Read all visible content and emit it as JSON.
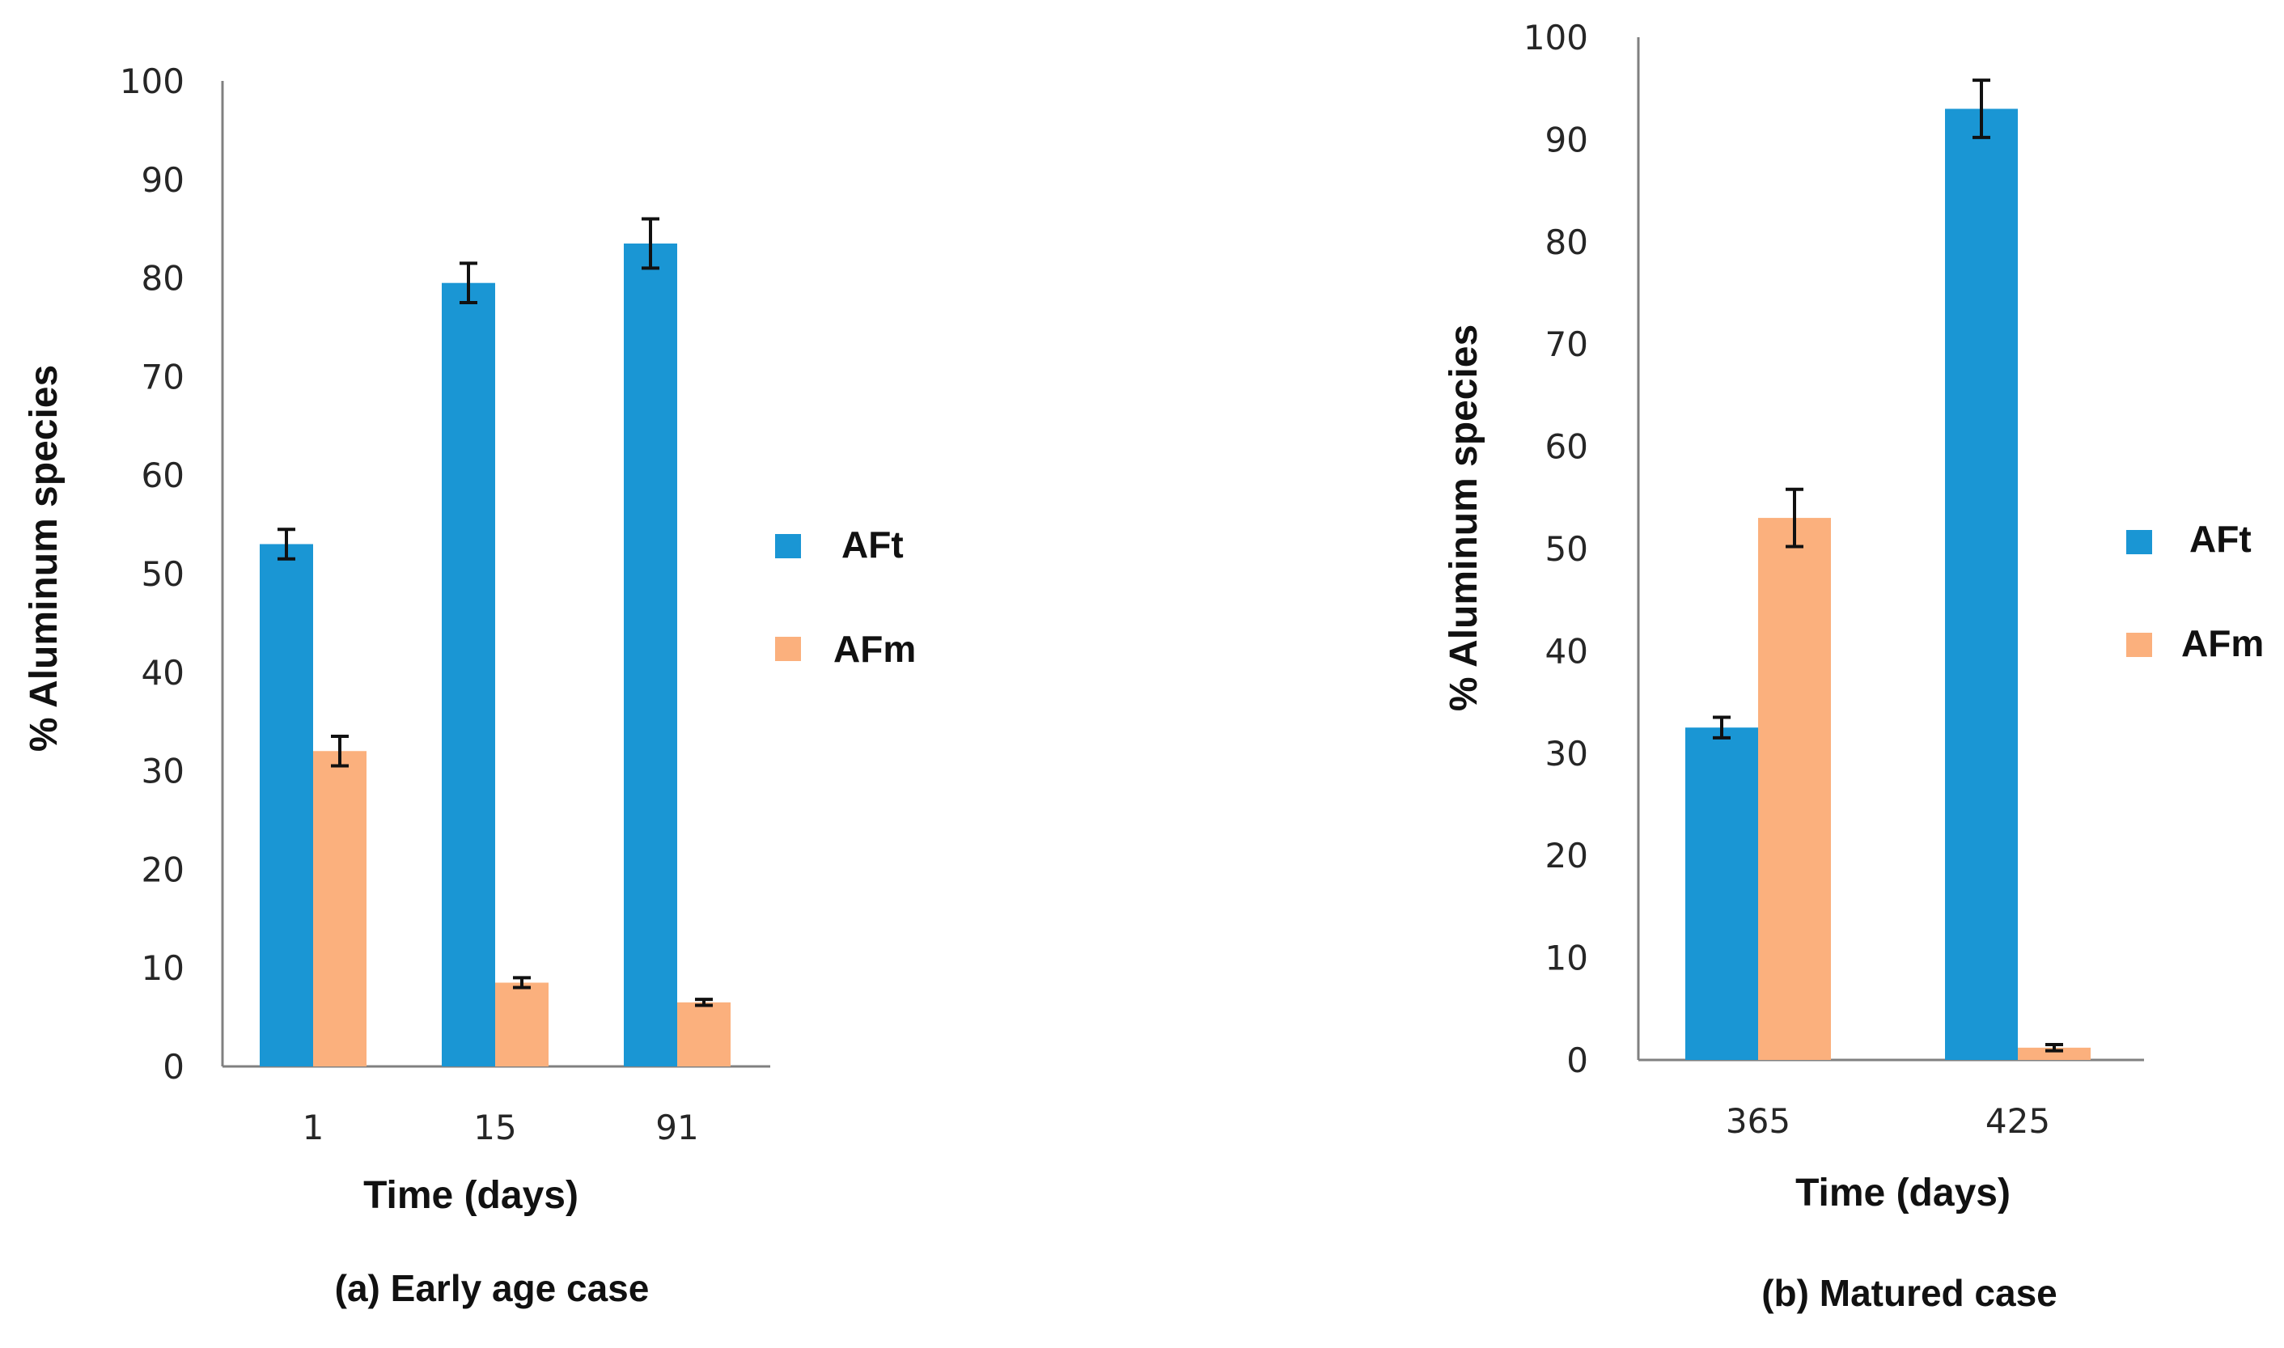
{
  "colors": {
    "aft": "#1a96d4",
    "afm": "#fbb07d"
  },
  "chart_data": [
    {
      "id": "a",
      "type": "bar",
      "caption": "(a) Early age case",
      "xlabel": "Time (days)",
      "ylabel": "% Aluminum species",
      "categories": [
        "1",
        "15",
        "91"
      ],
      "ylim": [
        0,
        100
      ],
      "yticks": [
        "0",
        "10",
        "20",
        "30",
        "40",
        "50",
        "60",
        "70",
        "80",
        "90",
        "100"
      ],
      "series": [
        {
          "name": "AFt",
          "values": [
            53,
            79.5,
            83.5
          ],
          "errors": [
            1.5,
            2.0,
            2.5
          ]
        },
        {
          "name": "AFm",
          "values": [
            32,
            8.5,
            6.5
          ],
          "errors": [
            1.5,
            0.5,
            0.3
          ]
        }
      ],
      "legend": "right"
    },
    {
      "id": "b",
      "type": "bar",
      "caption": "(b) Matured case",
      "xlabel": "Time (days)",
      "ylabel": "% Aluminum species",
      "categories": [
        "365",
        "425"
      ],
      "ylim": [
        0,
        100
      ],
      "yticks": [
        "0",
        "10",
        "20",
        "30",
        "40",
        "50",
        "60",
        "70",
        "80",
        "90",
        "100"
      ],
      "series": [
        {
          "name": "AFt",
          "values": [
            32.5,
            93
          ],
          "errors": [
            1.0,
            2.8
          ]
        },
        {
          "name": "AFm",
          "values": [
            53,
            1.2
          ],
          "errors": [
            2.8,
            0.3
          ]
        }
      ],
      "legend": "right"
    }
  ]
}
